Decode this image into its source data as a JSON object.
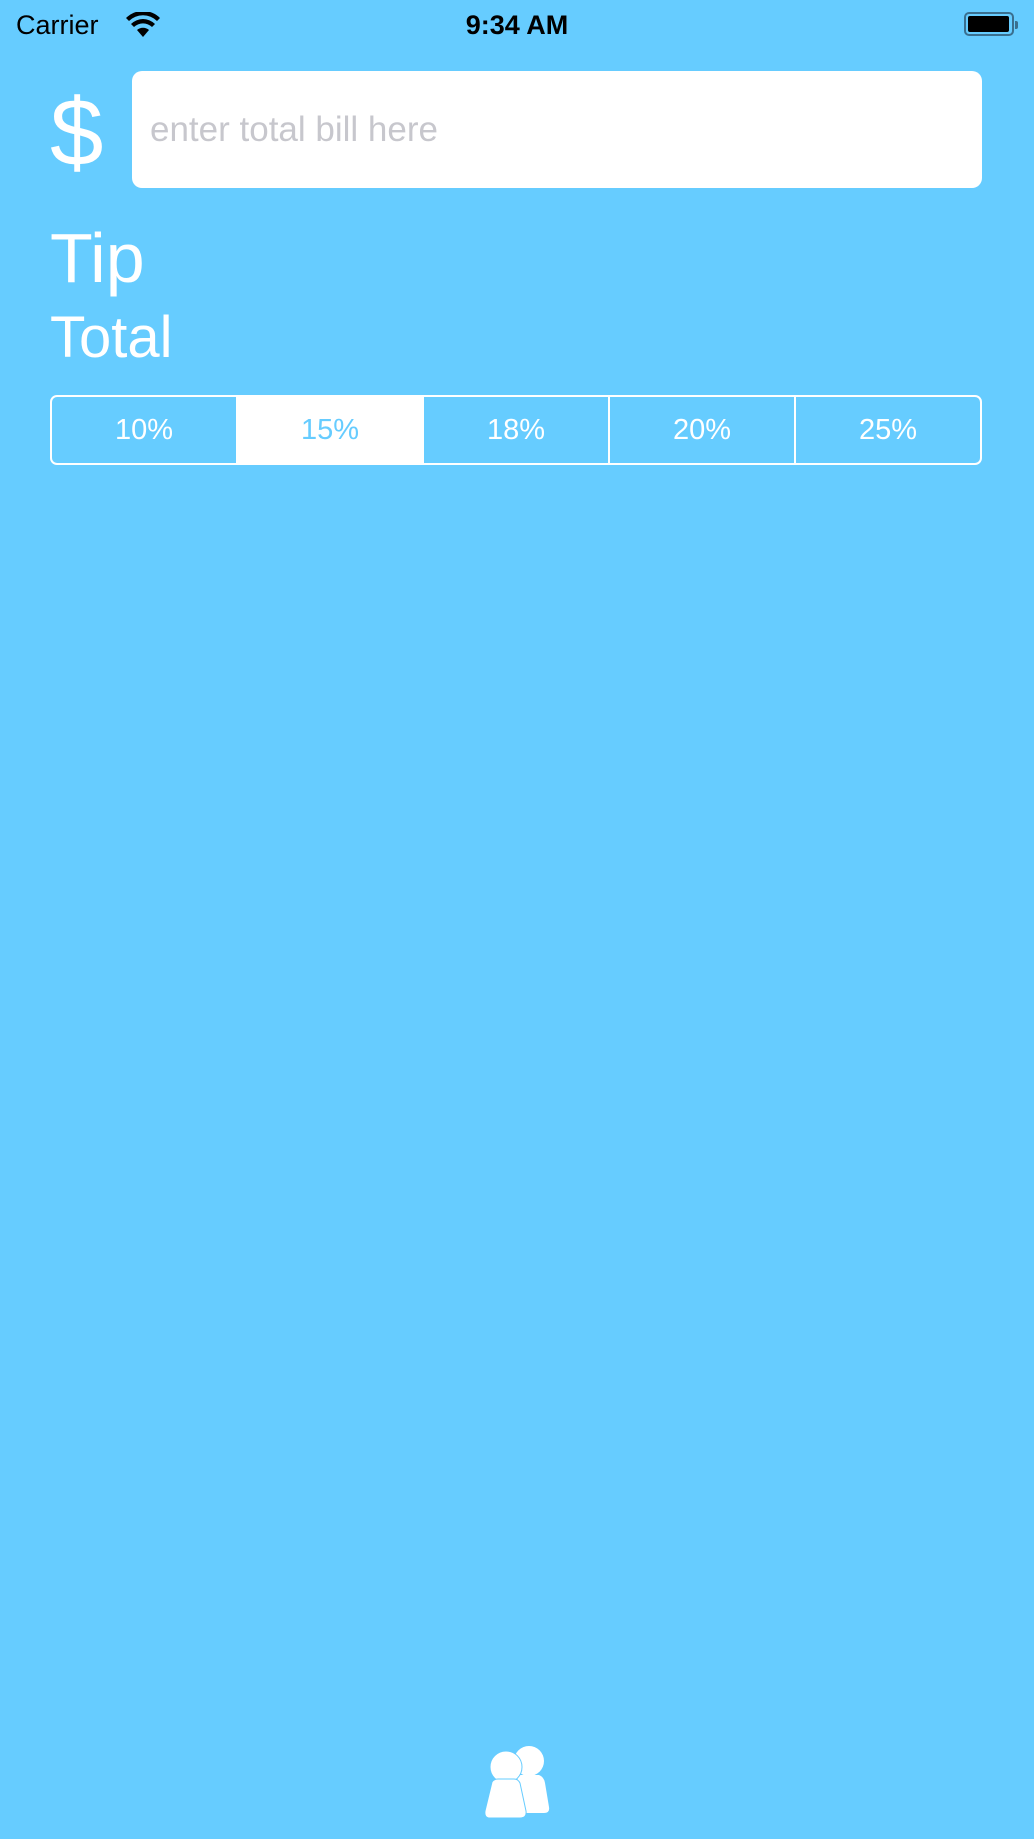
{
  "status_bar": {
    "carrier": "Carrier",
    "time": "9:34 AM",
    "wifi_icon": "wifi-icon",
    "battery_icon": "battery-icon"
  },
  "bill": {
    "currency_symbol": "$",
    "value": "",
    "placeholder": "enter total bill here"
  },
  "labels": {
    "tip": "Tip",
    "total": "Total"
  },
  "tip_selector": {
    "options": [
      "10%",
      "15%",
      "18%",
      "20%",
      "25%"
    ],
    "selected": "15%"
  },
  "footer": {
    "icon": "people-icon"
  },
  "colors": {
    "background": "#66CCFF",
    "foreground": "#FFFFFF"
  }
}
